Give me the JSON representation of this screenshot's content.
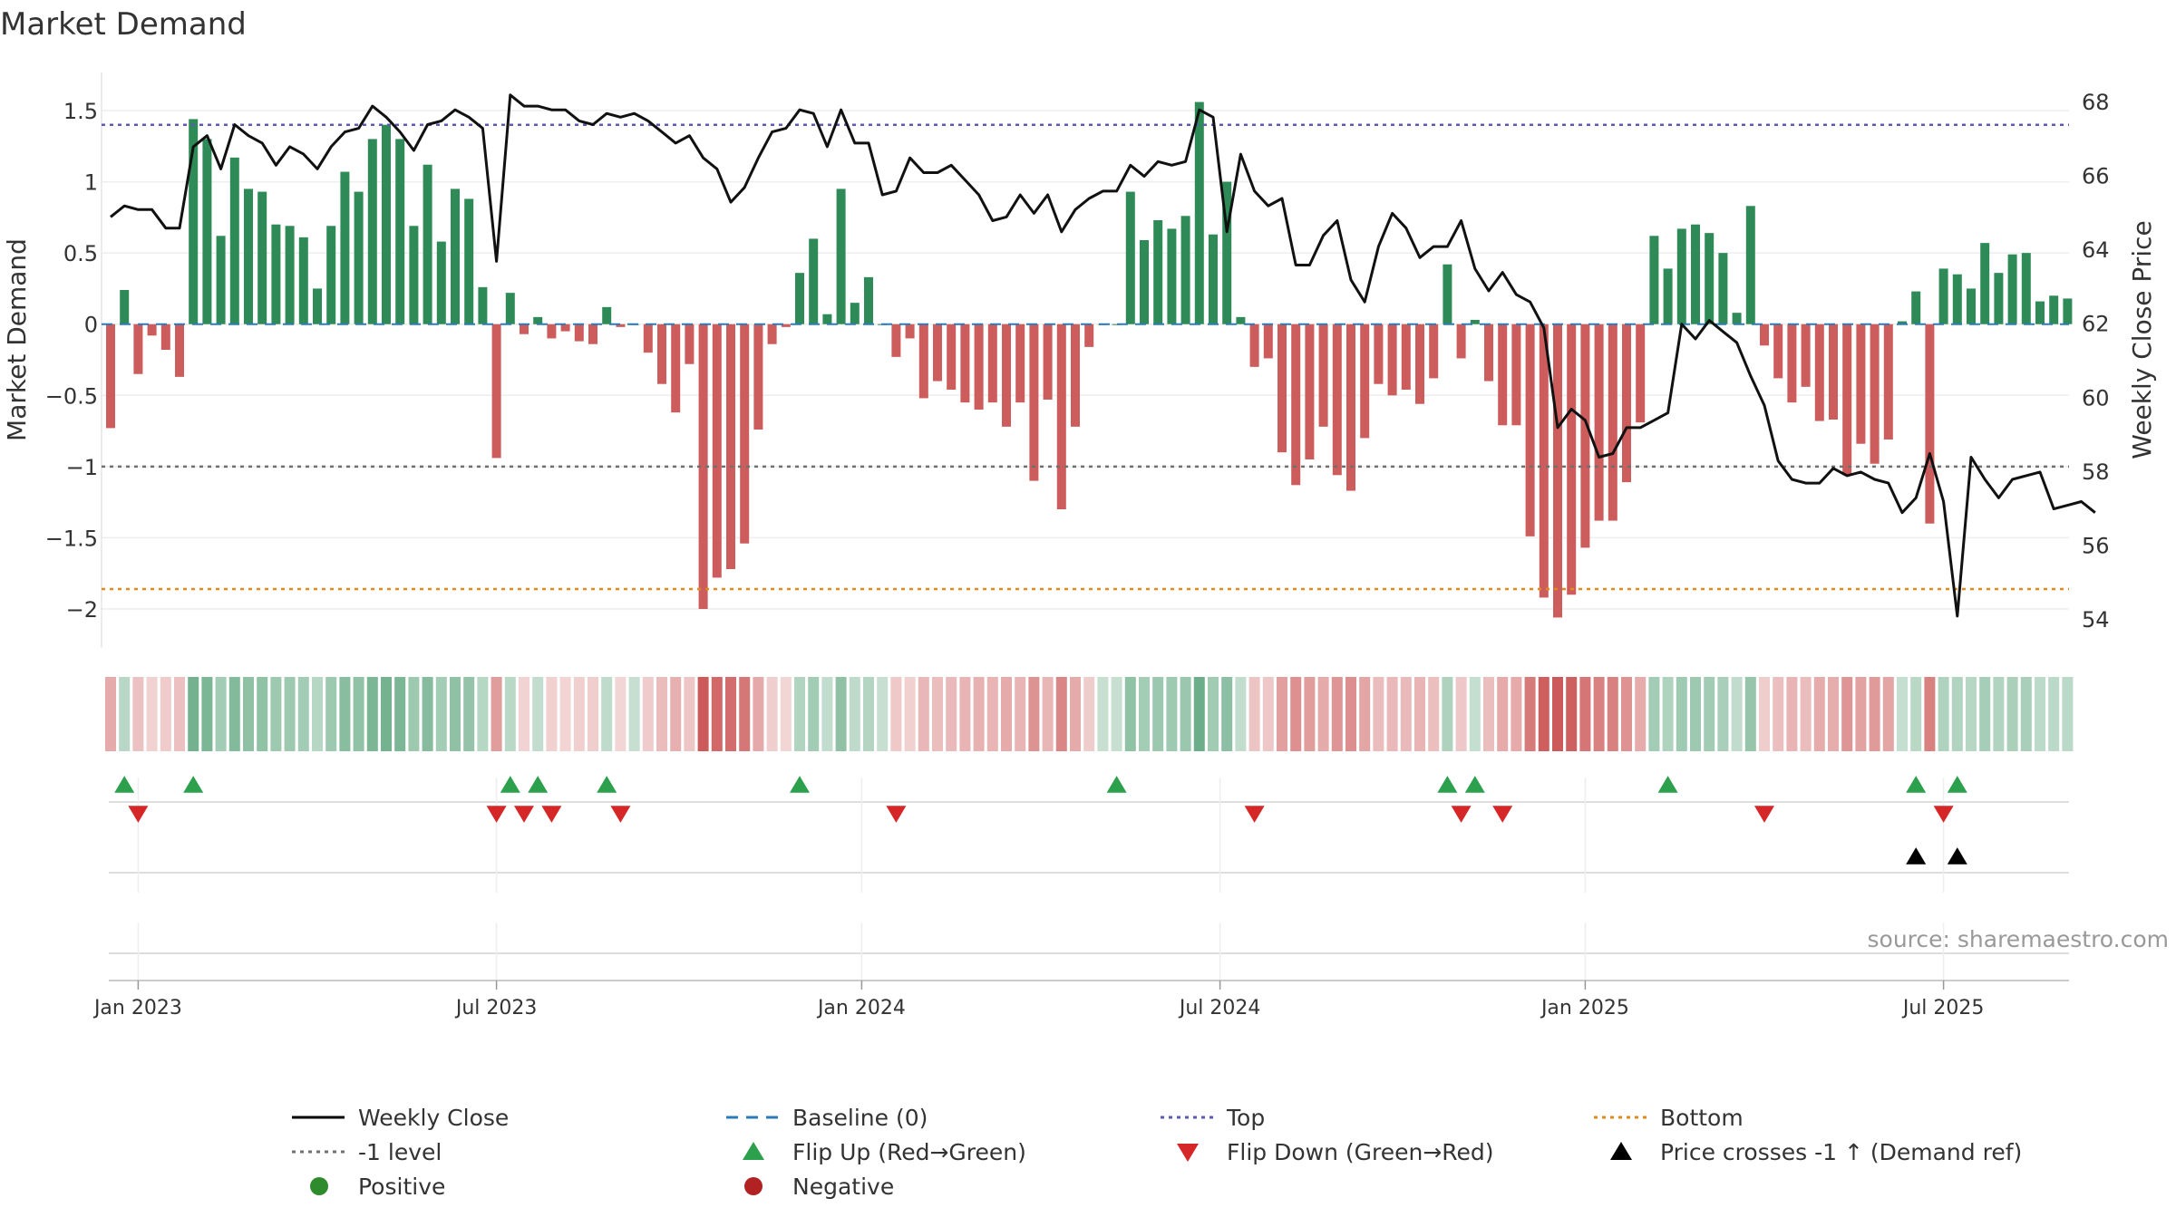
{
  "chart_data": {
    "type": "bar",
    "title": "Market Demand",
    "ylabel": "Market Demand",
    "y2label": "Weekly Close Price",
    "ylim": [
      -2.25,
      1.75
    ],
    "y2lim": [
      53.6,
      68.8
    ],
    "yticks": [
      {
        "v": 1.5,
        "label": "1.5"
      },
      {
        "v": 1,
        "label": "1"
      },
      {
        "v": 0.5,
        "label": "0.5"
      },
      {
        "v": 0,
        "label": "0"
      },
      {
        "v": -0.5,
        "label": "−0.5"
      },
      {
        "v": -1,
        "label": "−1"
      },
      {
        "v": -1.5,
        "label": "−1.5"
      },
      {
        "v": -2,
        "label": "−2"
      }
    ],
    "y2ticks": [
      {
        "v": 68,
        "label": "68"
      },
      {
        "v": 66,
        "label": "66"
      },
      {
        "v": 64,
        "label": "64"
      },
      {
        "v": 62,
        "label": "62"
      },
      {
        "v": 60,
        "label": "60"
      },
      {
        "v": 58,
        "label": "58"
      },
      {
        "v": 56,
        "label": "56"
      },
      {
        "v": 54,
        "label": "54"
      }
    ],
    "xticks": [
      {
        "week": 2,
        "label": "Jan 2023"
      },
      {
        "week": 28,
        "label": "Jul 2023"
      },
      {
        "week": 54.5,
        "label": "Jan 2024"
      },
      {
        "week": 80.5,
        "label": "Jul 2024"
      },
      {
        "week": 107,
        "label": "Jan 2025"
      },
      {
        "week": 133,
        "label": "Jul 2025"
      }
    ],
    "reference_lines": [
      {
        "name": "Top",
        "value": 1.4,
        "color": "#5b5bb5"
      },
      {
        "name": "-1 level",
        "value": -1,
        "color": "#707070"
      },
      {
        "name": "Bottom",
        "value": -1.86,
        "color": "#e08a1e"
      },
      {
        "name": "Baseline (0)",
        "value": 0,
        "color": "#2b7bba"
      }
    ],
    "series": [
      {
        "name": "Market Demand",
        "values": [
          -0.73,
          0.24,
          -0.35,
          -0.08,
          -0.18,
          -0.37,
          1.44,
          1.3,
          0.62,
          1.17,
          0.95,
          0.93,
          0.7,
          0.69,
          0.61,
          0.25,
          0.69,
          1.07,
          0.93,
          1.3,
          1.4,
          1.3,
          0.69,
          1.12,
          0.58,
          0.95,
          0.88,
          0.26,
          -0.94,
          0.22,
          -0.07,
          0.05,
          -0.1,
          -0.05,
          -0.12,
          -0.14,
          0.12,
          -0.02,
          0,
          -0.2,
          -0.42,
          -0.62,
          -0.28,
          -2.0,
          -1.78,
          -1.72,
          -1.54,
          -0.74,
          -0.14,
          -0.02,
          0.36,
          0.6,
          0.07,
          0.95,
          0.15,
          0.33,
          0,
          -0.23,
          -0.1,
          -0.52,
          -0.4,
          -0.46,
          -0.55,
          -0.6,
          -0.55,
          -0.72,
          -0.55,
          -1.1,
          -0.53,
          -1.3,
          -0.72,
          -0.16,
          0,
          0,
          0.93,
          0.59,
          0.73,
          0.67,
          0.76,
          1.56,
          0.63,
          1.0,
          0.05,
          -0.3,
          -0.24,
          -0.9,
          -1.13,
          -0.95,
          -0.72,
          -1.06,
          -1.17,
          -0.8,
          -0.42,
          -0.5,
          -0.46,
          -0.56,
          -0.38,
          0.42,
          -0.24,
          0.03,
          -0.4,
          -0.71,
          -0.71,
          -1.49,
          -1.92,
          -2.06,
          -1.9,
          -1.57,
          -1.38,
          -1.38,
          -1.11,
          -0.69,
          0.62,
          0.39,
          0.67,
          0.7,
          0.64,
          0.5,
          0.08,
          0.83,
          -0.15,
          -0.38,
          -0.55,
          -0.44,
          -0.68,
          -0.67,
          -1.06,
          -0.84,
          -0.98,
          -0.81,
          0.02,
          0.23,
          -1.4,
          0.39,
          0.35,
          0.25,
          0.57,
          0.36,
          0.49,
          0.5,
          0.16,
          0.2,
          0.18
        ]
      },
      {
        "name": "Weekly Close",
        "values": [
          64.9,
          65.2,
          65.1,
          65.1,
          64.6,
          64.6,
          66.8,
          67.1,
          66.2,
          67.4,
          67.1,
          66.9,
          66.3,
          66.8,
          66.6,
          66.2,
          66.8,
          67.2,
          67.3,
          67.9,
          67.6,
          67.2,
          66.7,
          67.4,
          67.5,
          67.8,
          67.6,
          67.3,
          63.7,
          68.2,
          67.9,
          67.9,
          67.8,
          67.8,
          67.5,
          67.4,
          67.7,
          67.6,
          67.7,
          67.5,
          67.2,
          66.9,
          67.1,
          66.5,
          66.2,
          65.3,
          65.7,
          66.5,
          67.2,
          67.3,
          67.8,
          67.7,
          66.8,
          67.8,
          66.9,
          66.9,
          65.5,
          65.6,
          66.5,
          66.1,
          66.1,
          66.3,
          65.9,
          65.5,
          64.8,
          64.9,
          65.5,
          65.0,
          65.5,
          64.5,
          65.1,
          65.4,
          65.6,
          65.6,
          66.3,
          66.0,
          66.4,
          66.3,
          66.4,
          67.8,
          67.6,
          64.5,
          66.6,
          65.6,
          65.2,
          65.4,
          63.6,
          63.6,
          64.4,
          64.8,
          63.2,
          62.6,
          64.1,
          65.0,
          64.6,
          63.8,
          64.1,
          64.1,
          64.8,
          63.5,
          62.9,
          63.4,
          62.8,
          62.6,
          61.9,
          59.2,
          59.7,
          59.4,
          58.4,
          58.5,
          59.2,
          59.2,
          59.4,
          59.6,
          62.0,
          61.6,
          62.1,
          61.8,
          61.5,
          60.6,
          59.8,
          58.3,
          57.8,
          57.7,
          57.7,
          58.1,
          57.9,
          58.0,
          57.8,
          57.7,
          56.9,
          57.3,
          58.5,
          57.2,
          54.1,
          58.4,
          57.8,
          57.3,
          57.8,
          57.9,
          58.0,
          57.0,
          57.1,
          57.2,
          56.9
        ]
      }
    ],
    "color_strip": {
      "note": "per-week state strip; color derived from Market Demand sign and magnitude",
      "positive_color": "#2e8b57",
      "negative_color": "#c84848"
    },
    "flip_up_weeks": [
      1,
      6,
      29,
      31,
      36,
      50,
      73,
      97,
      99,
      113,
      131,
      134
    ],
    "flip_down_weeks": [
      2,
      28,
      30,
      32,
      37,
      57,
      83,
      98,
      101,
      120,
      133
    ],
    "price_cross_weeks": [
      131,
      134
    ],
    "legend": [
      {
        "label": "Weekly Close",
        "kind": "line",
        "color": "#000000"
      },
      {
        "label": "Baseline (0)",
        "kind": "dash",
        "color": "#2b7bba"
      },
      {
        "label": "Top",
        "kind": "dot",
        "color": "#5b5bb5"
      },
      {
        "label": "Bottom",
        "kind": "dot",
        "color": "#e08a1e"
      },
      {
        "label": "-1 level",
        "kind": "dot",
        "color": "#707070"
      },
      {
        "label": "Flip Up (Red→Green)",
        "kind": "tri-up",
        "color": "#2ca04c"
      },
      {
        "label": "Flip Down (Green→Red)",
        "kind": "tri-down",
        "color": "#d62728"
      },
      {
        "label": "Price crosses -1 ↑ (Demand ref)",
        "kind": "tri-up",
        "color": "#000000"
      },
      {
        "label": "Positive",
        "kind": "circle",
        "color": "#2e8b2e"
      },
      {
        "label": "Negative",
        "kind": "circle",
        "color": "#b22222"
      }
    ],
    "source": "source: sharemaestro.com"
  }
}
